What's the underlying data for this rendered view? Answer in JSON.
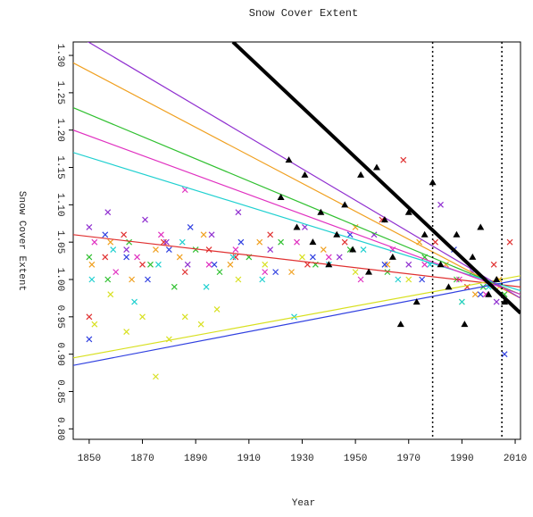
{
  "chart_data": {
    "type": "scatter",
    "title": "Snow Cover Extent",
    "x_label": "Year",
    "y_label": "Snow Cover Extent",
    "xlim": [
      1844,
      2012
    ],
    "ylim": [
      0.786,
      1.318
    ],
    "xticks": [
      1850,
      1870,
      1890,
      1910,
      1930,
      1950,
      1970,
      1990,
      2010
    ],
    "yticks": [
      {
        "value": 0.8,
        "label": "0.80"
      },
      0.85,
      {
        "value": 0.9,
        "label": "0.90"
      },
      0.95,
      {
        "value": 1,
        "label": "1.00"
      },
      1.05,
      {
        "value": 1.1,
        "label": "1.10"
      },
      1.15,
      {
        "value": 1.2,
        "label": "1.20"
      },
      1.25,
      {
        "value": 1.3,
        "label": "1.30"
      }
    ],
    "vlines": [
      1979,
      2005
    ],
    "series": [
      {
        "color": "#e03030",
        "x": [
          1850,
          1856,
          1863,
          1870,
          1878,
          1886,
          1895,
          1905,
          1918,
          1932,
          1946,
          1960,
          1968,
          1980,
          1992,
          2002,
          2008
        ],
        "values": [
          0.95,
          1.03,
          1.06,
          1.02,
          1.05,
          1.01,
          1.04,
          1.03,
          1.06,
          1.02,
          1.05,
          1.08,
          1.16,
          1.05,
          0.99,
          1.02,
          1.05
        ],
        "trend": {
          "x": [
            1844,
            2012
          ],
          "values": [
            1.06,
            0.99
          ]
        }
      },
      {
        "color": "#f0a020",
        "x": [
          1851,
          1858,
          1866,
          1875,
          1884,
          1893,
          1903,
          1914,
          1926,
          1938,
          1950,
          1962,
          1974,
          1984,
          1995,
          2004
        ],
        "values": [
          1.02,
          1.05,
          1.0,
          1.04,
          1.03,
          1.06,
          1.02,
          1.05,
          1.01,
          1.04,
          1.07,
          1.02,
          1.05,
          1.02,
          0.98,
          1.0
        ],
        "trend": {
          "x": [
            1844,
            2012
          ],
          "values": [
            1.29,
            0.975
          ]
        }
      },
      {
        "color": "#d8e020",
        "x": [
          1852,
          1858,
          1864,
          1870,
          1875,
          1880,
          1886,
          1892,
          1898,
          1906,
          1916,
          1930,
          1950,
          1970,
          1990,
          2004
        ],
        "values": [
          0.94,
          0.98,
          0.93,
          0.95,
          0.87,
          0.92,
          0.95,
          0.94,
          0.96,
          1.0,
          1.02,
          1.03,
          1.01,
          1.0,
          0.97,
          0.99
        ],
        "trend": {
          "x": [
            1844,
            2012
          ],
          "values": [
            0.895,
            1.005
          ]
        }
      },
      {
        "color": "#30c030",
        "x": [
          1850,
          1857,
          1865,
          1873,
          1882,
          1890,
          1899,
          1910,
          1922,
          1935,
          1948,
          1962,
          1976,
          1988,
          1998,
          2006
        ],
        "values": [
          1.03,
          1.0,
          1.05,
          1.02,
          0.99,
          1.04,
          1.01,
          1.03,
          1.05,
          1.02,
          1.04,
          1.01,
          1.03,
          1.0,
          0.99,
          0.98
        ],
        "trend": {
          "x": [
            1844,
            2012
          ],
          "values": [
            1.23,
            0.98
          ]
        }
      },
      {
        "color": "#20d0d0",
        "x": [
          1851,
          1859,
          1867,
          1876,
          1885,
          1894,
          1904,
          1915,
          1927,
          1940,
          1953,
          1966,
          1978,
          1990,
          2000
        ],
        "values": [
          1.0,
          1.04,
          0.97,
          1.02,
          1.05,
          0.99,
          1.03,
          1.0,
          0.95,
          1.02,
          1.04,
          1.0,
          1.02,
          0.97,
          0.99
        ],
        "trend": {
          "x": [
            1844,
            2012
          ],
          "values": [
            1.17,
            0.985
          ]
        }
      },
      {
        "color": "#3040e0",
        "x": [
          1850,
          1856,
          1864,
          1872,
          1880,
          1888,
          1897,
          1907,
          1920,
          1934,
          1948,
          1961,
          1975,
          1987,
          1997,
          2006
        ],
        "values": [
          0.92,
          1.06,
          1.03,
          1.0,
          1.04,
          1.07,
          1.02,
          1.05,
          1.01,
          1.03,
          1.06,
          1.02,
          1.0,
          1.04,
          0.98,
          0.9
        ],
        "trend": {
          "x": [
            1844,
            2012
          ],
          "values": [
            0.885,
            1.0
          ]
        }
      },
      {
        "color": "#9030d0",
        "x": [
          1850,
          1857,
          1864,
          1871,
          1879,
          1887,
          1896,
          1906,
          1918,
          1931,
          1944,
          1957,
          1970,
          1982,
          1994,
          2003
        ],
        "values": [
          1.07,
          1.09,
          1.04,
          1.08,
          1.05,
          1.02,
          1.06,
          1.09,
          1.04,
          1.07,
          1.03,
          1.06,
          1.02,
          1.1,
          1.01,
          0.97
        ],
        "trend": {
          "x": [
            1844,
            2012
          ],
          "values": [
            1.33,
            0.975
          ]
        }
      },
      {
        "color": "#e030c0",
        "x": [
          1852,
          1860,
          1868,
          1877,
          1886,
          1895,
          1905,
          1916,
          1928,
          1940,
          1952,
          1964,
          1976,
          1989,
          1999
        ],
        "values": [
          1.05,
          1.01,
          1.03,
          1.06,
          1.12,
          1.02,
          1.04,
          1.01,
          1.05,
          1.03,
          1.0,
          1.04,
          1.02,
          1.0,
          0.98
        ],
        "trend": {
          "x": [
            1844,
            2012
          ],
          "values": [
            1.2,
            0.98
          ]
        }
      }
    ],
    "observed": {
      "color": "#000000",
      "x": [
        1922,
        1925,
        1928,
        1931,
        1934,
        1937,
        1940,
        1943,
        1946,
        1949,
        1952,
        1955,
        1958,
        1961,
        1964,
        1967,
        1970,
        1973,
        1976,
        1979,
        1982,
        1985,
        1988,
        1991,
        1994,
        1997,
        2000,
        2003,
        2006
      ],
      "values": [
        1.11,
        1.16,
        1.07,
        1.14,
        1.05,
        1.09,
        1.02,
        1.06,
        1.1,
        1.04,
        1.14,
        1.01,
        1.15,
        1.08,
        1.03,
        0.94,
        1.09,
        0.97,
        1.06,
        1.13,
        1.02,
        0.99,
        1.06,
        0.94,
        1.03,
        1.07,
        0.98,
        1.0,
        0.97
      ]
    },
    "fit": {
      "x": [
        1904,
        2012
      ],
      "values": [
        1.318,
        0.955
      ]
    }
  }
}
